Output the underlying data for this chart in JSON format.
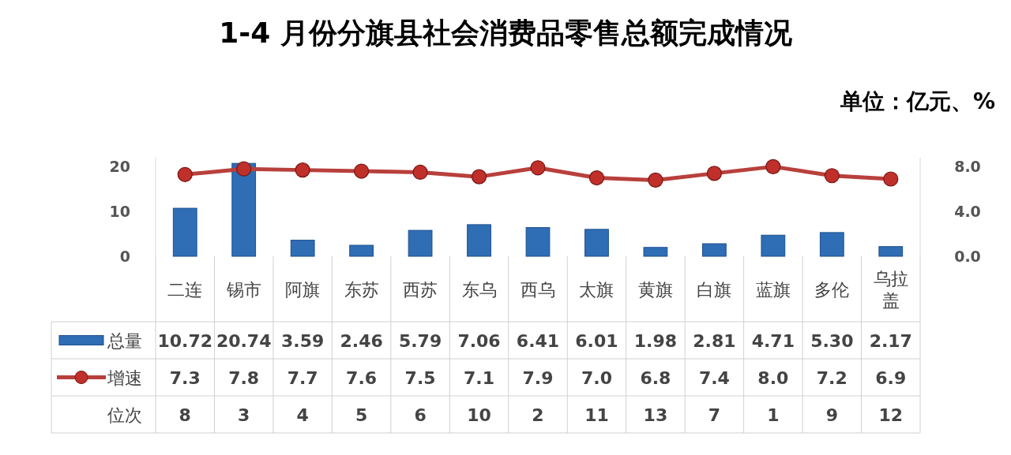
{
  "chart_data": {
    "type": "bar",
    "title": "1-4 月份分旗县社会消费品零售总额完成情况",
    "subtitle": "单位：亿元、%",
    "categories": [
      "二连",
      "锡市",
      "阿旗",
      "东苏",
      "西苏",
      "东乌",
      "西乌",
      "太旗",
      "黄旗",
      "白旗",
      "蓝旗",
      "多伦",
      "乌拉盖"
    ],
    "series": [
      {
        "name": "总量",
        "color": "#2f6db5",
        "values": [
          10.72,
          20.74,
          3.59,
          2.46,
          5.79,
          7.06,
          6.41,
          6.01,
          1.98,
          2.81,
          4.71,
          5.3,
          2.17
        ]
      },
      {
        "name": "增速",
        "type": "line",
        "axis": "y2",
        "color": "#b8403c",
        "values": [
          7.3,
          7.8,
          7.7,
          7.6,
          7.5,
          7.1,
          7.9,
          7.0,
          6.8,
          7.4,
          8.0,
          7.2,
          6.9
        ]
      }
    ],
    "value_labels": [
      [
        "10.72",
        "20.74",
        "3.59",
        "2.46",
        "5.79",
        "7.06",
        "6.41",
        "6.01",
        "1.98",
        "2.81",
        "4.71",
        "5.30",
        "2.17"
      ],
      [
        "7.3",
        "7.8",
        "7.7",
        "7.6",
        "7.5",
        "7.1",
        "7.9",
        "7.0",
        "6.8",
        "7.4",
        "8.0",
        "7.2",
        "6.9"
      ]
    ],
    "ylim": [
      0,
      22
    ],
    "yticks": [
      0,
      10,
      20
    ],
    "y2lim": [
      0,
      8.8
    ],
    "y2ticks": [
      {
        "value": 0,
        "label": "0.0"
      },
      {
        "value": 4,
        "label": "4.0"
      },
      {
        "value": 8,
        "label": "8.0"
      }
    ],
    "marker": "circle",
    "legend": "bottom left",
    "annotations": [
      "位次",
      "8",
      "3",
      "4",
      "5",
      "6",
      "10",
      "2",
      "11",
      "13",
      "7",
      "1",
      "9",
      "12"
    ]
  }
}
